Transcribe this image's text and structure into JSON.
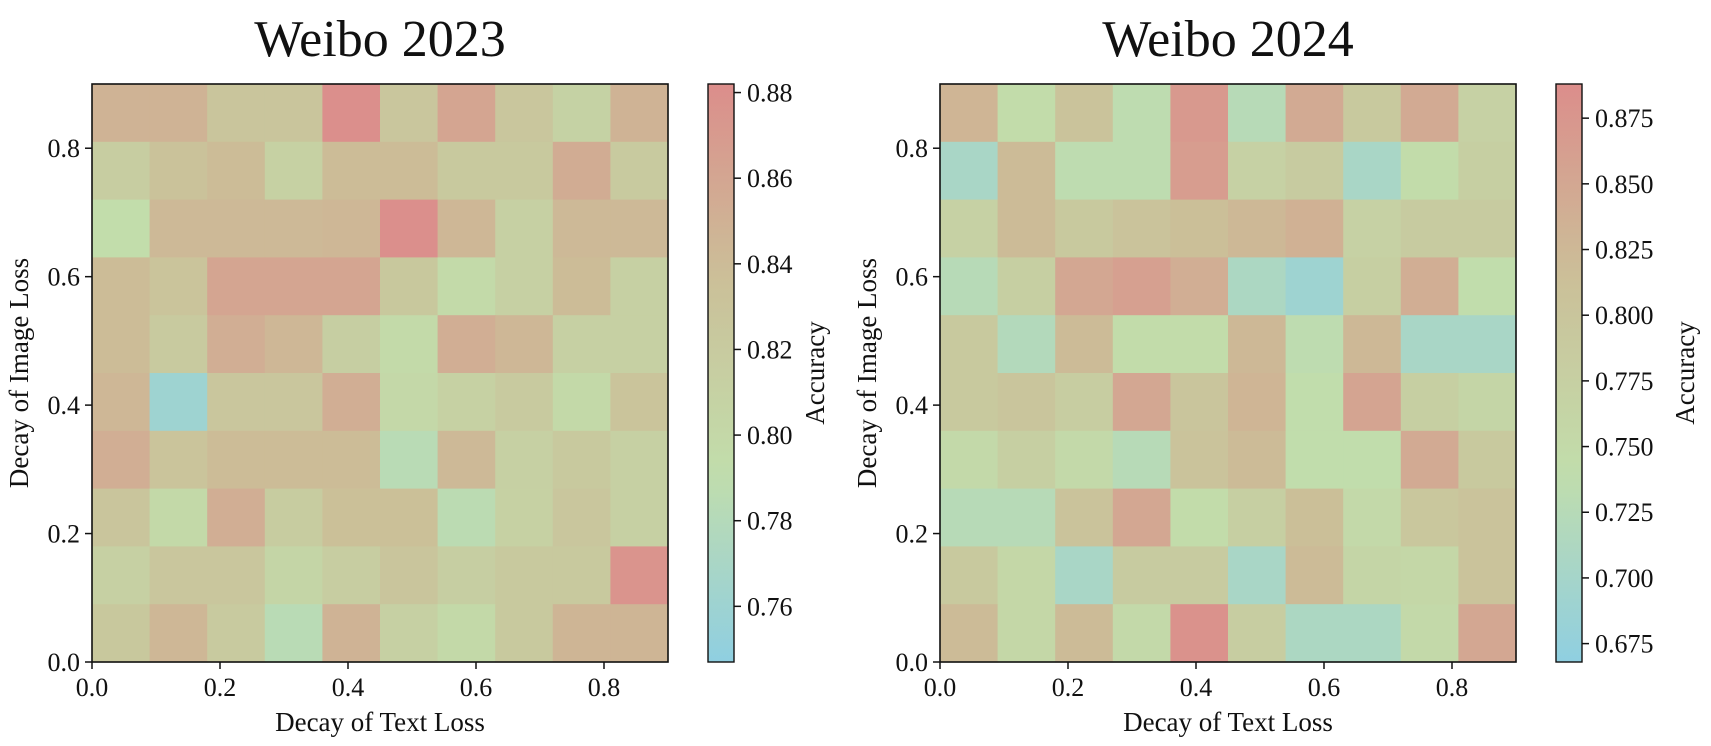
{
  "chart_data": [
    {
      "type": "heatmap",
      "title": "Weibo 2023",
      "xlabel": "Decay of Text Loss",
      "ylabel": "Decay of Image Loss",
      "colorbar_label": "Accuracy",
      "x_ticks": [
        "0.0",
        "0.2",
        "0.4",
        "0.6",
        "0.8"
      ],
      "y_ticks": [
        "0.0",
        "0.2",
        "0.4",
        "0.6",
        "0.8"
      ],
      "colorbar_ticks": [
        "0.76",
        "0.78",
        "0.80",
        "0.82",
        "0.84",
        "0.86",
        "0.88"
      ],
      "colorbar_range": [
        0.747,
        0.882
      ],
      "x_range": [
        0.0,
        0.9
      ],
      "y_range": [
        0.0,
        0.9
      ],
      "cmap": [
        "#8fcfe1",
        "#c2ddab",
        "#cbbf98",
        "#dc8d8b"
      ],
      "grid": false,
      "values": [
        [
          0.848,
          0.848,
          0.828,
          0.828,
          0.88,
          0.826,
          0.86,
          0.826,
          0.808,
          0.848
        ],
        [
          0.816,
          0.832,
          0.84,
          0.81,
          0.84,
          0.84,
          0.822,
          0.822,
          0.854,
          0.82
        ],
        [
          0.792,
          0.842,
          0.842,
          0.842,
          0.844,
          0.88,
          0.844,
          0.812,
          0.842,
          0.842
        ],
        [
          0.84,
          0.83,
          0.86,
          0.86,
          0.86,
          0.824,
          0.796,
          0.812,
          0.84,
          0.812
        ],
        [
          0.84,
          0.82,
          0.852,
          0.844,
          0.814,
          0.796,
          0.852,
          0.844,
          0.812,
          0.812
        ],
        [
          0.844,
          0.76,
          0.826,
          0.826,
          0.852,
          0.8,
          0.81,
          0.82,
          0.798,
          0.83
        ],
        [
          0.852,
          0.83,
          0.84,
          0.84,
          0.84,
          0.784,
          0.842,
          0.812,
          0.822,
          0.812
        ],
        [
          0.828,
          0.798,
          0.852,
          0.818,
          0.836,
          0.836,
          0.786,
          0.81,
          0.826,
          0.812
        ],
        [
          0.812,
          0.826,
          0.826,
          0.804,
          0.816,
          0.828,
          0.814,
          0.822,
          0.822,
          0.876
        ],
        [
          0.824,
          0.844,
          0.82,
          0.784,
          0.848,
          0.812,
          0.798,
          0.822,
          0.846,
          0.846
        ]
      ]
    },
    {
      "type": "heatmap",
      "title": "Weibo 2024",
      "xlabel": "Decay of Text Loss",
      "ylabel": "Decay of Image Loss",
      "colorbar_label": "Accuracy",
      "x_ticks": [
        "0.0",
        "0.2",
        "0.4",
        "0.6",
        "0.8"
      ],
      "y_ticks": [
        "0.0",
        "0.2",
        "0.4",
        "0.6",
        "0.8"
      ],
      "colorbar_ticks": [
        "0.675",
        "0.700",
        "0.725",
        "0.750",
        "0.775",
        "0.800",
        "0.825",
        "0.850",
        "0.875"
      ],
      "colorbar_range": [
        0.668,
        0.888
      ],
      "x_range": [
        0.0,
        0.9
      ],
      "y_range": [
        0.0,
        0.9
      ],
      "cmap": [
        "#8fcfe1",
        "#c2ddab",
        "#cbbf98",
        "#dc8d8b"
      ],
      "grid": false,
      "values": [
        [
          0.83,
          0.745,
          0.805,
          0.735,
          0.87,
          0.725,
          0.845,
          0.79,
          0.845,
          0.77
        ],
        [
          0.705,
          0.82,
          0.735,
          0.735,
          0.865,
          0.77,
          0.785,
          0.705,
          0.745,
          0.775
        ],
        [
          0.77,
          0.82,
          0.79,
          0.805,
          0.815,
          0.825,
          0.835,
          0.77,
          0.785,
          0.785
        ],
        [
          0.725,
          0.775,
          0.85,
          0.86,
          0.84,
          0.71,
          0.69,
          0.775,
          0.84,
          0.74
        ],
        [
          0.79,
          0.72,
          0.82,
          0.745,
          0.745,
          0.825,
          0.735,
          0.825,
          0.705,
          0.705
        ],
        [
          0.79,
          0.8,
          0.78,
          0.85,
          0.8,
          0.83,
          0.74,
          0.855,
          0.775,
          0.76
        ],
        [
          0.75,
          0.775,
          0.75,
          0.725,
          0.805,
          0.82,
          0.74,
          0.74,
          0.845,
          0.79
        ],
        [
          0.725,
          0.725,
          0.805,
          0.85,
          0.745,
          0.775,
          0.815,
          0.75,
          0.795,
          0.805
        ],
        [
          0.79,
          0.755,
          0.705,
          0.785,
          0.785,
          0.705,
          0.82,
          0.76,
          0.755,
          0.805
        ],
        [
          0.82,
          0.755,
          0.82,
          0.75,
          0.88,
          0.78,
          0.71,
          0.71,
          0.75,
          0.85
        ]
      ]
    }
  ]
}
